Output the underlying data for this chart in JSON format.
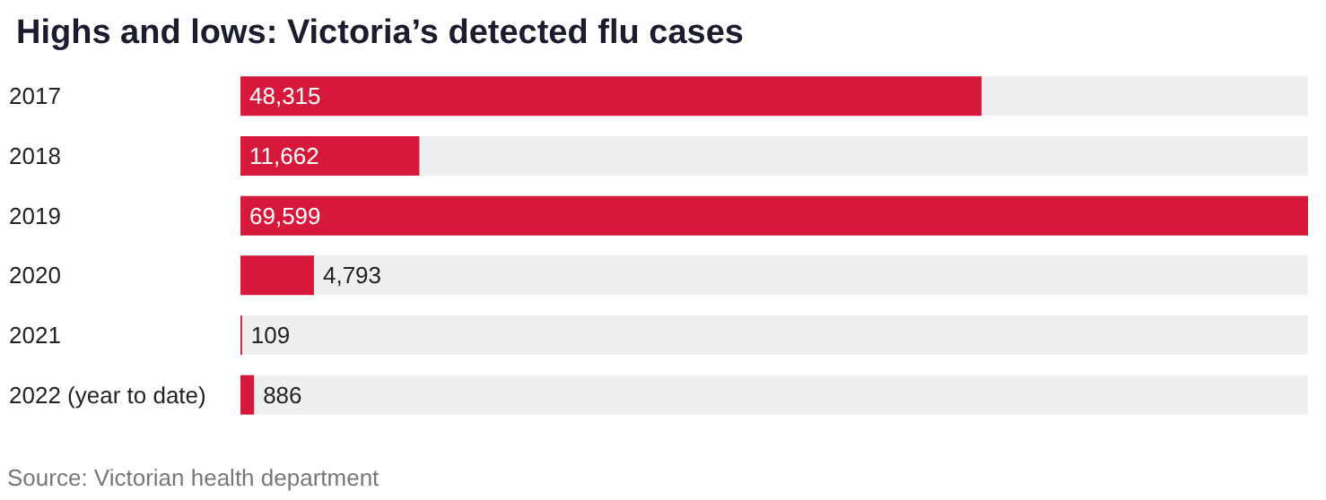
{
  "chart_data": {
    "type": "bar",
    "orientation": "horizontal",
    "title": "Highs and lows: Victoria’s detected flu cases",
    "categories": [
      "2017",
      "2018",
      "2019",
      "2020",
      "2021",
      "2022 (year to date)"
    ],
    "values": [
      48315,
      11662,
      69599,
      4793,
      109,
      886
    ],
    "value_labels": [
      "48,315",
      "11,662",
      "69,599",
      "4,793",
      "109",
      "886"
    ],
    "color": "#d6193a",
    "tick_labels": "y",
    "annotations": [
      "Source: Victorian health department"
    ]
  }
}
